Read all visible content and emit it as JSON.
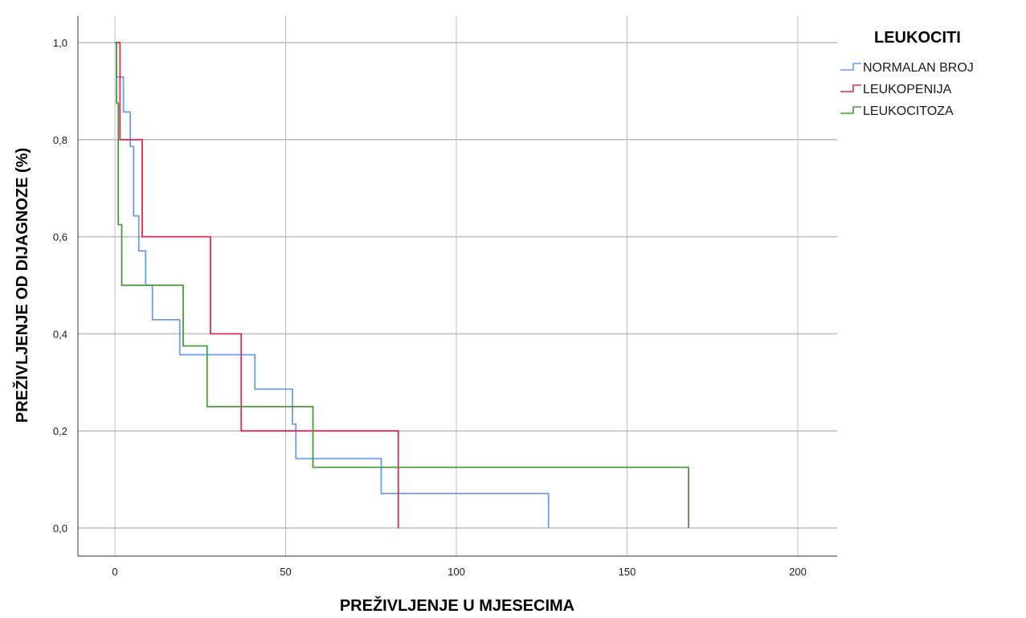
{
  "chart_data": {
    "type": "line",
    "subtype": "kaplan-meier-step",
    "xlabel": "PREŽIVLJENJE U MJESECIMA",
    "ylabel": "PREŽIVLJENJE OD DIJAGNOZE (%)",
    "xlim": [
      0,
      200
    ],
    "ylim": [
      0,
      1
    ],
    "x_ticks": [
      0,
      50,
      100,
      150,
      200
    ],
    "y_ticks": [
      0,
      0.2,
      0.4,
      0.6,
      0.8,
      1.0
    ],
    "x_tick_labels": [
      "0",
      "50",
      "100",
      "150",
      "200"
    ],
    "y_tick_labels": [
      "0,0",
      "0,2",
      "0,4",
      "0,6",
      "0,8",
      "1,0"
    ],
    "grid": true,
    "legend": {
      "title": "LEUKOCITI",
      "placement": "top-right"
    },
    "series": [
      {
        "name": "NORMALAN BROJ",
        "color": "#6d9eea",
        "points": [
          [
            0,
            1.0
          ],
          [
            0.5,
            1.0
          ],
          [
            0.5,
            0.929
          ],
          [
            2.5,
            0.929
          ],
          [
            2.5,
            0.857
          ],
          [
            4.5,
            0.857
          ],
          [
            4.5,
            0.786
          ],
          [
            5.5,
            0.786
          ],
          [
            5.5,
            0.643
          ],
          [
            7,
            0.643
          ],
          [
            7,
            0.571
          ],
          [
            9,
            0.571
          ],
          [
            9,
            0.5
          ],
          [
            11,
            0.5
          ],
          [
            11,
            0.429
          ],
          [
            19,
            0.429
          ],
          [
            19,
            0.357
          ],
          [
            41,
            0.357
          ],
          [
            41,
            0.286
          ],
          [
            52,
            0.286
          ],
          [
            52,
            0.214
          ],
          [
            53,
            0.214
          ],
          [
            53,
            0.143
          ],
          [
            78,
            0.143
          ],
          [
            78,
            0.071
          ],
          [
            127,
            0.071
          ],
          [
            127,
            0.0
          ]
        ]
      },
      {
        "name": "LEUKOPENIJA",
        "color": "#e0294f",
        "points": [
          [
            0,
            1.0
          ],
          [
            1.5,
            1.0
          ],
          [
            1.5,
            0.8
          ],
          [
            8,
            0.8
          ],
          [
            8,
            0.6
          ],
          [
            28,
            0.6
          ],
          [
            28,
            0.4
          ],
          [
            37,
            0.4
          ],
          [
            37,
            0.2
          ],
          [
            83,
            0.2
          ],
          [
            83,
            0.0
          ]
        ]
      },
      {
        "name": "LEUKOCITOZA",
        "color": "#4a9a3c",
        "points": [
          [
            0,
            1.0
          ],
          [
            0.5,
            1.0
          ],
          [
            0.5,
            0.875
          ],
          [
            1,
            0.875
          ],
          [
            1,
            0.625
          ],
          [
            2,
            0.625
          ],
          [
            2,
            0.5
          ],
          [
            20,
            0.5
          ],
          [
            20,
            0.375
          ],
          [
            27,
            0.375
          ],
          [
            27,
            0.25
          ],
          [
            58,
            0.25
          ],
          [
            58,
            0.125
          ],
          [
            168,
            0.125
          ],
          [
            168,
            0.0
          ]
        ]
      }
    ]
  }
}
